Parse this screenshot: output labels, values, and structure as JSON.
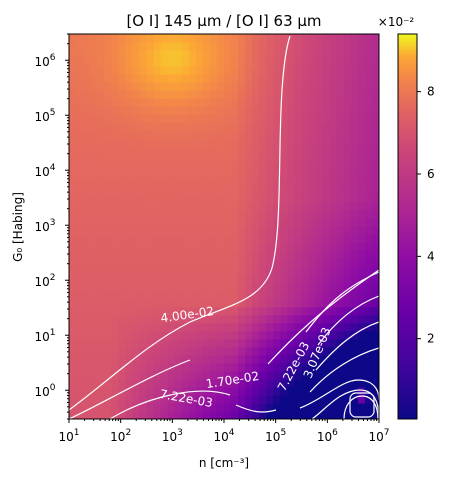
{
  "chart_data": {
    "type": "heatmap",
    "title": "[O I] 145 μm / [O I] 63 μm",
    "xlabel": "n [cm⁻³]",
    "ylabel": "G₀ [Habing]",
    "x_scale": "log",
    "y_scale": "log",
    "xlim": [
      10,
      10000000
    ],
    "ylim": [
      0.3,
      3000000
    ],
    "x_ticks": [
      {
        "value": 10,
        "base": "10",
        "exp": "1"
      },
      {
        "value": 100,
        "base": "10",
        "exp": "2"
      },
      {
        "value": 1000,
        "base": "10",
        "exp": "3"
      },
      {
        "value": 10000,
        "base": "10",
        "exp": "4"
      },
      {
        "value": 100000,
        "base": "10",
        "exp": "5"
      },
      {
        "value": 1000000,
        "base": "10",
        "exp": "6"
      },
      {
        "value": 10000000,
        "base": "10",
        "exp": "7"
      }
    ],
    "y_ticks": [
      {
        "value": 1,
        "base": "10",
        "exp": "0"
      },
      {
        "value": 10,
        "base": "10",
        "exp": "1"
      },
      {
        "value": 100,
        "base": "10",
        "exp": "2"
      },
      {
        "value": 1000,
        "base": "10",
        "exp": "3"
      },
      {
        "value": 10000,
        "base": "10",
        "exp": "4"
      },
      {
        "value": 100000,
        "base": "10",
        "exp": "5"
      },
      {
        "value": 1000000,
        "base": "10",
        "exp": "6"
      }
    ],
    "colormap": "plasma",
    "colorbar": {
      "min": 0.0005,
      "max": 0.094,
      "multiplier_label": "×10⁻²",
      "ticks": [
        {
          "value": 0.02,
          "label": "2"
        },
        {
          "value": 0.04,
          "label": "4"
        },
        {
          "value": 0.06,
          "label": "6"
        },
        {
          "value": 0.08,
          "label": "8"
        }
      ]
    },
    "contour_levels": [
      "4.00e-02",
      "1.70e-02",
      "7.22e-03",
      "3.07e-03"
    ],
    "contour_labels": [
      {
        "text": "4.00e-02",
        "x": 2000,
        "y": 20,
        "angle": -8
      },
      {
        "text": "1.70e-02",
        "x": 15000,
        "y": 1.3,
        "angle": -9
      },
      {
        "text": "7.22e-03",
        "x": 1800,
        "y": 0.6,
        "angle": 10
      },
      {
        "text": "7.22e-03",
        "x": 260000,
        "y": 2.5,
        "angle": -62
      },
      {
        "text": "3.07e-03",
        "x": 750000,
        "y": 4.5,
        "angle": -68
      }
    ],
    "grid": false
  }
}
